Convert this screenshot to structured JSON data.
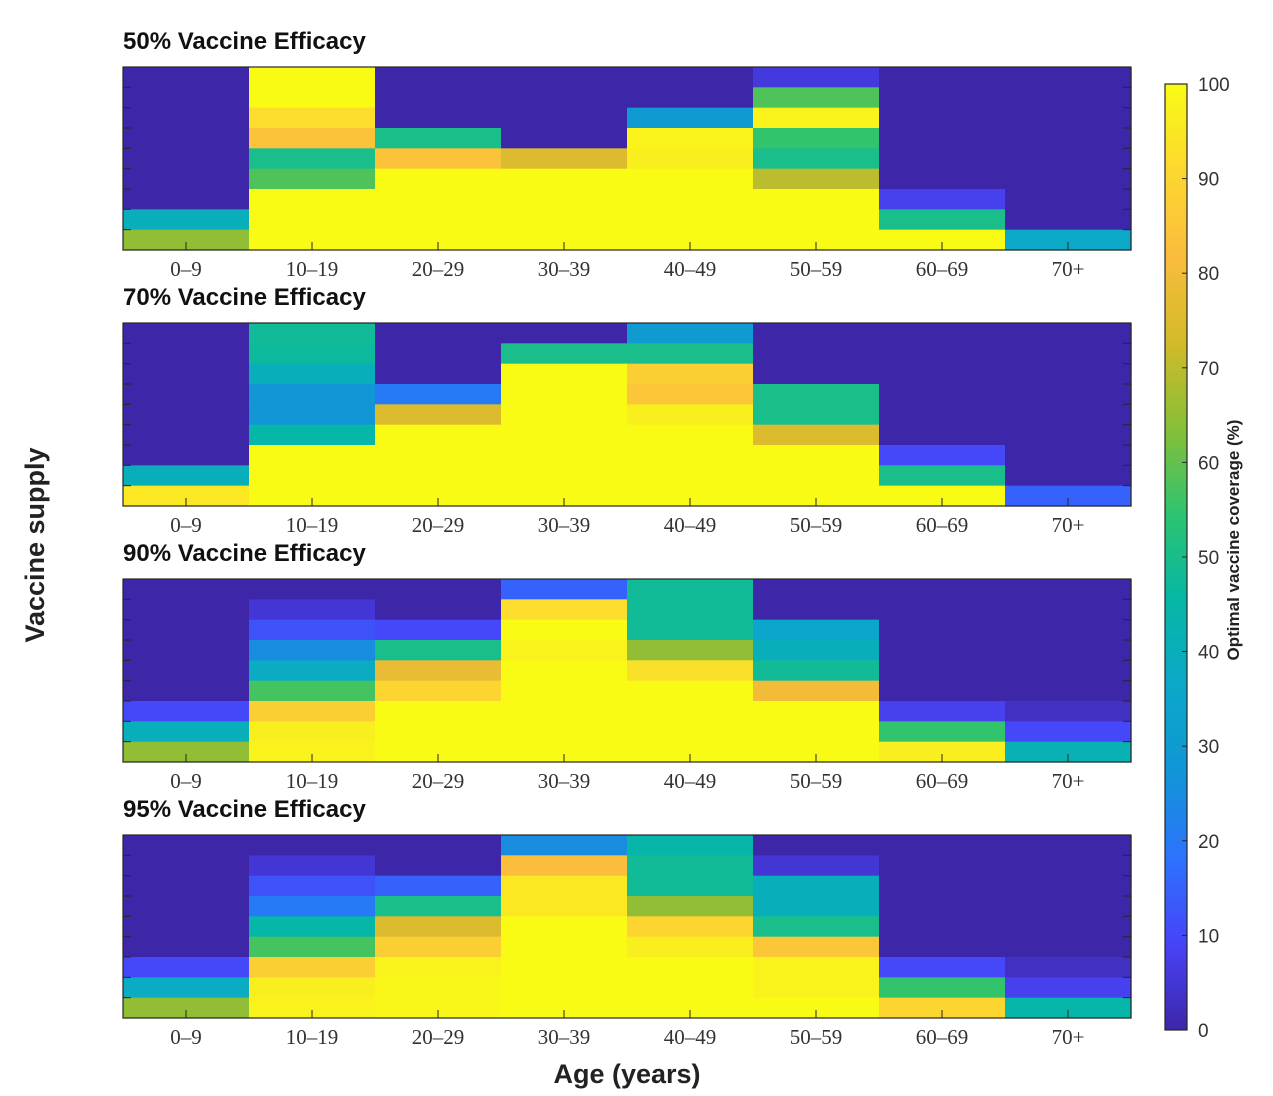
{
  "chart_data": {
    "type": "heatmap",
    "xlabel": "Age (years)",
    "ylabel": "Vaccine supply",
    "categories": [
      "0–9",
      "10–19",
      "20–29",
      "30–39",
      "40–49",
      "50–59",
      "60–69",
      "70+"
    ],
    "colorbar": {
      "label": "Optimal vaccine coverage (%)",
      "range": [
        0,
        100
      ],
      "ticks": [
        "0",
        "10",
        "20",
        "30",
        "40",
        "50",
        "60",
        "70",
        "80",
        "90",
        "100"
      ],
      "colormap": [
        "#3e26a8",
        "#4743f8",
        "#2c73fd",
        "#1195d6",
        "#0ba8c9",
        "#06b7a6",
        "#2dc470",
        "#87bf37",
        "#d3ba2b",
        "#fabc3c",
        "#fcd82f",
        "#f9fb15"
      ]
    },
    "panels": [
      {
        "title": "50% Vaccine Efficacy",
        "columns": [
          [
            0,
            0,
            0,
            0,
            0,
            0,
            0,
            40,
            65
          ],
          [
            100,
            100,
            92,
            84,
            50,
            58,
            100,
            100,
            100
          ],
          [
            0,
            0,
            0,
            50,
            84,
            100,
            100,
            100,
            100
          ],
          [
            0,
            0,
            0,
            0,
            75,
            100,
            100,
            100,
            100
          ],
          [
            0,
            0,
            30,
            98,
            97,
            100,
            100,
            100,
            100
          ],
          [
            6,
            58,
            98,
            55,
            50,
            70,
            100,
            100,
            100
          ],
          [
            0,
            0,
            0,
            0,
            0,
            0,
            8,
            50,
            100
          ],
          [
            0,
            0,
            0,
            0,
            0,
            0,
            0,
            0,
            37
          ]
        ]
      },
      {
        "title": "70% Vaccine Efficacy",
        "columns": [
          [
            0,
            0,
            0,
            0,
            0,
            0,
            0,
            40,
            95
          ],
          [
            48,
            47,
            40,
            28,
            28,
            45,
            100,
            100,
            100
          ],
          [
            0,
            0,
            0,
            20,
            75,
            100,
            100,
            100,
            100
          ],
          [
            0,
            50,
            100,
            100,
            100,
            100,
            100,
            100,
            100
          ],
          [
            30,
            50,
            88,
            85,
            97,
            100,
            100,
            100,
            100
          ],
          [
            0,
            0,
            0,
            50,
            50,
            75,
            100,
            100,
            100
          ],
          [
            0,
            0,
            0,
            0,
            0,
            0,
            10,
            50,
            100
          ],
          [
            0,
            0,
            0,
            0,
            0,
            0,
            0,
            0,
            15
          ]
        ]
      },
      {
        "title": "90% Vaccine Efficacy",
        "columns": [
          [
            0,
            0,
            0,
            0,
            0,
            0,
            10,
            40,
            65
          ],
          [
            0,
            5,
            12,
            25,
            38,
            57,
            88,
            97,
            98
          ],
          [
            0,
            0,
            10,
            50,
            78,
            90,
            100,
            100,
            100
          ],
          [
            15,
            92,
            100,
            98,
            100,
            100,
            100,
            100,
            100
          ],
          [
            48,
            48,
            48,
            65,
            93,
            100,
            100,
            100,
            100
          ],
          [
            0,
            0,
            35,
            40,
            48,
            80,
            100,
            100,
            100
          ],
          [
            0,
            0,
            0,
            0,
            0,
            0,
            8,
            55,
            97
          ],
          [
            0,
            0,
            0,
            0,
            0,
            0,
            3,
            10,
            42
          ]
        ]
      },
      {
        "title": "95% Vaccine Efficacy",
        "columns": [
          [
            0,
            0,
            0,
            0,
            0,
            0,
            10,
            38,
            65
          ],
          [
            0,
            5,
            12,
            20,
            45,
            57,
            88,
            97,
            98
          ],
          [
            0,
            0,
            15,
            50,
            75,
            88,
            98,
            99,
            99
          ],
          [
            25,
            82,
            95,
            95,
            100,
            100,
            100,
            100,
            100
          ],
          [
            45,
            48,
            48,
            65,
            90,
            97,
            100,
            100,
            100
          ],
          [
            0,
            5,
            40,
            40,
            50,
            85,
            98,
            98,
            100
          ],
          [
            0,
            0,
            0,
            0,
            0,
            0,
            10,
            55,
            90
          ],
          [
            0,
            0,
            0,
            0,
            0,
            0,
            3,
            8,
            45
          ]
        ]
      }
    ]
  }
}
